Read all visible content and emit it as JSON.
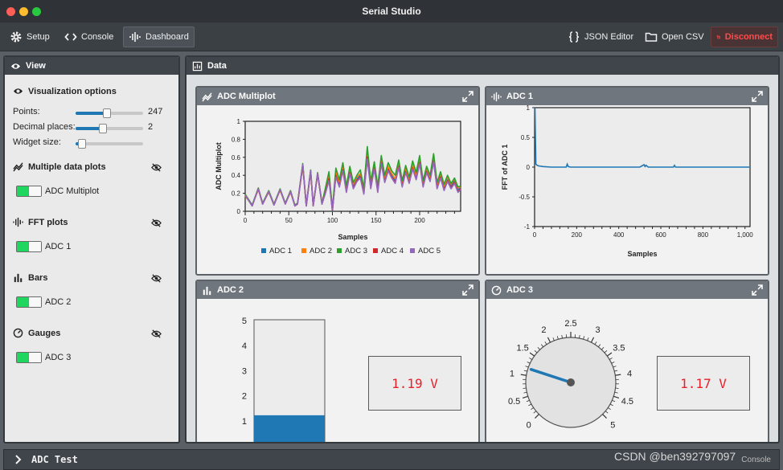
{
  "window": {
    "title": "Serial Studio"
  },
  "toolbar": {
    "setup": "Setup",
    "console": "Console",
    "dashboard": "Dashboard",
    "json_editor": "JSON Editor",
    "open_csv": "Open CSV",
    "disconnect": "Disconnect"
  },
  "view_panel": {
    "title": "View",
    "visualization_options": "Visualization options",
    "points_label": "Points:",
    "points_value": "247",
    "points_level": 0.47,
    "decimal_label": "Decimal places:",
    "decimal_value": "2",
    "decimal_level": 0.4,
    "widget_size_label": "Widget size:",
    "widget_size_level": 0.1,
    "sections": [
      {
        "title": "Multiple data plots",
        "item": "ADC Multiplot",
        "icon": "multiplot-icon"
      },
      {
        "title": "FFT plots",
        "item": "ADC 1",
        "icon": "fft-icon"
      },
      {
        "title": "Bars",
        "item": "ADC 2",
        "icon": "bars-icon"
      },
      {
        "title": "Gauges",
        "item": "ADC 3",
        "icon": "gauge-icon"
      }
    ]
  },
  "data_panel": {
    "title": "Data"
  },
  "widgets": {
    "multiplot": {
      "title": "ADC Multiplot",
      "ylabel": "ADC Multiplot",
      "xlabel": "Samples",
      "yticks": [
        "1",
        "0.8",
        "0.6",
        "0.4",
        "0.2",
        "0"
      ],
      "xticks": [
        "0",
        "50",
        "100",
        "150",
        "200"
      ],
      "legend": [
        "ADC 1",
        "ADC 2",
        "ADC 3",
        "ADC 4",
        "ADC 5"
      ]
    },
    "fft": {
      "title": "ADC 1",
      "ylabel": "FFT of ADC 1",
      "xlabel": "Samples",
      "yticks": [
        "1",
        "0.5",
        "0",
        "-0.5",
        "-1"
      ],
      "xticks": [
        "0",
        "200",
        "400",
        "600",
        "800",
        "1,000"
      ]
    },
    "bar": {
      "title": "ADC 2",
      "ticks": [
        "5",
        "4",
        "3",
        "2",
        "1"
      ],
      "value": 1.19,
      "max": 5,
      "readout": "1.19 V"
    },
    "gauge": {
      "title": "ADC 3",
      "ticks": [
        "0",
        "0.5",
        "1",
        "1.5",
        "2",
        "2.5",
        "3",
        "3.5",
        "4",
        "4.5",
        "5"
      ],
      "value": 1.17,
      "min": 0,
      "max": 5,
      "readout": "1.17 V"
    }
  },
  "bottom": {
    "title": "ADC Test",
    "console": "Console"
  },
  "watermark": "CSDN @ben392797097",
  "chart_data": [
    {
      "type": "line",
      "title": "ADC Multiplot",
      "xlabel": "Samples",
      "ylabel": "ADC Multiplot",
      "xlim": [
        0,
        247
      ],
      "ylim": [
        0,
        1
      ],
      "colors": [
        "#1f77b4",
        "#ff7f0e",
        "#2ca02c",
        "#d62728",
        "#9467bd"
      ],
      "x": [
        0,
        8,
        15,
        20,
        27,
        33,
        40,
        46,
        52,
        57,
        60,
        66,
        70,
        75,
        78,
        83,
        88,
        92,
        96,
        100,
        104,
        108,
        112,
        116,
        120,
        124,
        128,
        132,
        136,
        140,
        144,
        148,
        152,
        156,
        160,
        164,
        168,
        172,
        176,
        180,
        184,
        188,
        192,
        196,
        200,
        204,
        208,
        212,
        216,
        220,
        224,
        228,
        232,
        236,
        240,
        244,
        247
      ],
      "series": [
        {
          "name": "ADC 1",
          "values": [
            0.18,
            0.06,
            0.25,
            0.08,
            0.22,
            0.07,
            0.24,
            0.08,
            0.22,
            0.06,
            0.08,
            0.52,
            0.06,
            0.45,
            0.06,
            0.42,
            0.08,
            0.22,
            0.38,
            0.0,
            0.42,
            0.3,
            0.48,
            0.24,
            0.45,
            0.28,
            0.36,
            0.4,
            0.22,
            0.62,
            0.28,
            0.5,
            0.24,
            0.56,
            0.35,
            0.48,
            0.4,
            0.34,
            0.52,
            0.3,
            0.46,
            0.34,
            0.5,
            0.38,
            0.56,
            0.3,
            0.46,
            0.36,
            0.58,
            0.28,
            0.4,
            0.26,
            0.36,
            0.28,
            0.34,
            0.24,
            0.26
          ]
        },
        {
          "name": "ADC 2",
          "values": [
            0.17,
            0.07,
            0.24,
            0.09,
            0.21,
            0.08,
            0.23,
            0.09,
            0.21,
            0.07,
            0.09,
            0.5,
            0.07,
            0.44,
            0.07,
            0.41,
            0.09,
            0.24,
            0.4,
            0.02,
            0.44,
            0.32,
            0.5,
            0.26,
            0.47,
            0.3,
            0.38,
            0.42,
            0.24,
            0.66,
            0.3,
            0.52,
            0.26,
            0.58,
            0.37,
            0.5,
            0.42,
            0.36,
            0.54,
            0.32,
            0.48,
            0.36,
            0.52,
            0.4,
            0.58,
            0.32,
            0.48,
            0.38,
            0.6,
            0.3,
            0.42,
            0.28,
            0.38,
            0.3,
            0.36,
            0.26,
            0.27
          ]
        },
        {
          "name": "ADC 3",
          "values": [
            0.19,
            0.07,
            0.26,
            0.09,
            0.23,
            0.08,
            0.25,
            0.09,
            0.23,
            0.07,
            0.09,
            0.53,
            0.07,
            0.46,
            0.07,
            0.43,
            0.09,
            0.26,
            0.44,
            0.03,
            0.48,
            0.35,
            0.54,
            0.28,
            0.5,
            0.32,
            0.4,
            0.46,
            0.26,
            0.72,
            0.33,
            0.55,
            0.28,
            0.62,
            0.4,
            0.54,
            0.45,
            0.4,
            0.57,
            0.34,
            0.51,
            0.38,
            0.56,
            0.43,
            0.62,
            0.34,
            0.5,
            0.4,
            0.64,
            0.32,
            0.44,
            0.3,
            0.4,
            0.31,
            0.37,
            0.27,
            0.28
          ]
        },
        {
          "name": "ADC 4",
          "values": [
            0.18,
            0.06,
            0.25,
            0.08,
            0.22,
            0.07,
            0.24,
            0.08,
            0.22,
            0.06,
            0.08,
            0.51,
            0.06,
            0.45,
            0.06,
            0.42,
            0.08,
            0.21,
            0.36,
            0.01,
            0.4,
            0.28,
            0.46,
            0.22,
            0.43,
            0.26,
            0.34,
            0.38,
            0.2,
            0.6,
            0.26,
            0.48,
            0.22,
            0.54,
            0.33,
            0.46,
            0.38,
            0.32,
            0.5,
            0.28,
            0.44,
            0.32,
            0.48,
            0.36,
            0.54,
            0.28,
            0.44,
            0.34,
            0.56,
            0.26,
            0.38,
            0.24,
            0.34,
            0.26,
            0.32,
            0.22,
            0.25
          ]
        },
        {
          "name": "ADC 5",
          "values": [
            0.18,
            0.06,
            0.25,
            0.08,
            0.22,
            0.07,
            0.24,
            0.08,
            0.22,
            0.06,
            0.08,
            0.52,
            0.06,
            0.45,
            0.06,
            0.42,
            0.08,
            0.2,
            0.34,
            0.02,
            0.38,
            0.27,
            0.45,
            0.21,
            0.42,
            0.25,
            0.33,
            0.37,
            0.19,
            0.58,
            0.25,
            0.47,
            0.21,
            0.53,
            0.32,
            0.45,
            0.37,
            0.31,
            0.49,
            0.27,
            0.43,
            0.31,
            0.47,
            0.35,
            0.53,
            0.27,
            0.43,
            0.33,
            0.55,
            0.25,
            0.37,
            0.23,
            0.33,
            0.25,
            0.31,
            0.21,
            0.24
          ]
        }
      ]
    },
    {
      "type": "line",
      "title": "ADC 1",
      "xlabel": "Samples",
      "ylabel": "FFT of ADC 1",
      "xlim": [
        0,
        1024
      ],
      "ylim": [
        -1,
        1
      ],
      "color": "#1f77b4",
      "x": [
        0,
        2,
        6,
        12,
        20,
        40,
        80,
        120,
        150,
        155,
        160,
        170,
        200,
        300,
        400,
        500,
        520,
        525,
        530,
        540,
        600,
        660,
        665,
        670,
        700,
        800,
        900,
        1000,
        1024
      ],
      "values": [
        1.0,
        0.98,
        0.05,
        0.03,
        0.02,
        0.01,
        0.0,
        0.0,
        0.0,
        0.05,
        0.01,
        0.0,
        0.0,
        0.0,
        0.0,
        0.0,
        0.04,
        0.01,
        0.03,
        0.0,
        0.0,
        0.0,
        0.03,
        0.0,
        0.0,
        0.0,
        0.0,
        0.0,
        0.0
      ]
    }
  ]
}
